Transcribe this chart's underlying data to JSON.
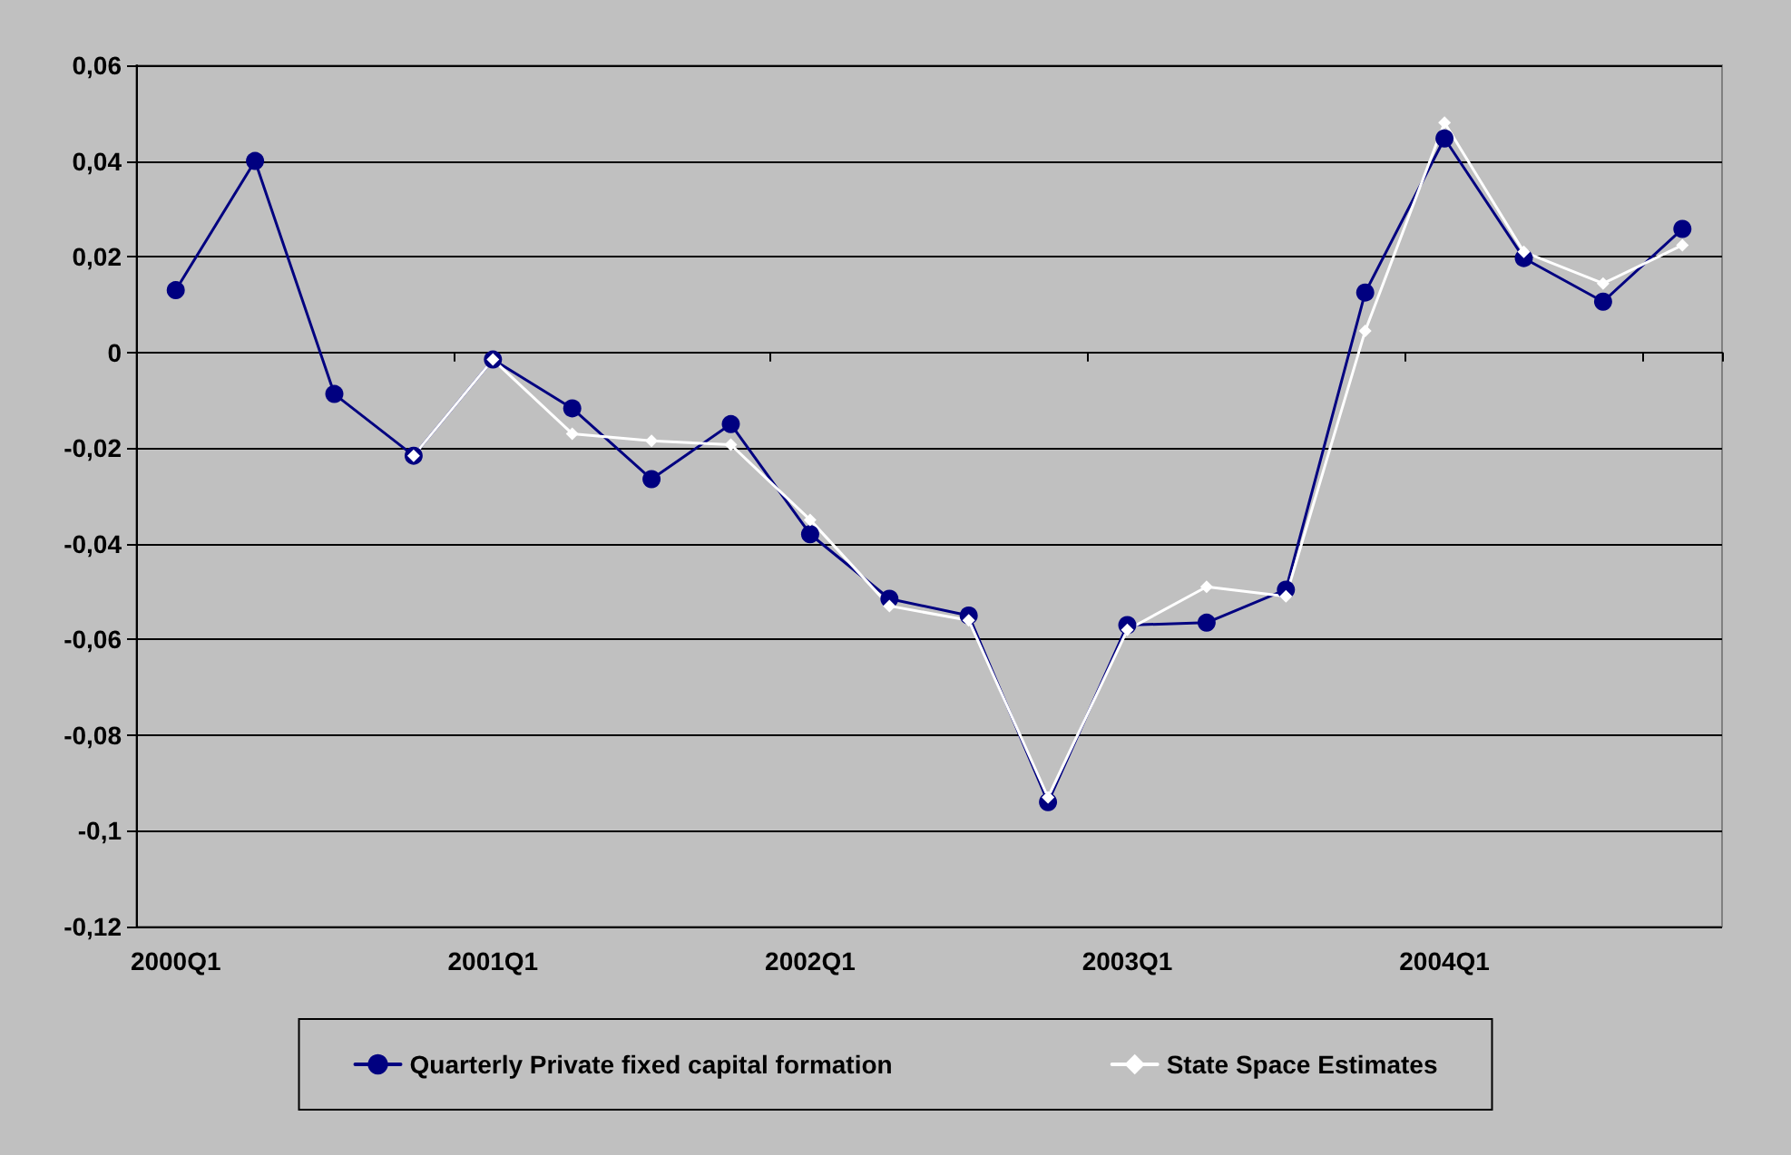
{
  "chart_data": {
    "type": "line",
    "categories": [
      "2000Q1",
      null,
      null,
      null,
      "2001Q1",
      null,
      null,
      null,
      "2002Q1",
      null,
      null,
      null,
      "2003Q1",
      null,
      null,
      null,
      "2004Q1",
      null,
      null,
      null
    ],
    "series": [
      {
        "name": "Quarterly Private fixed capital formation",
        "color": "#000080",
        "marker": "circle",
        "values": [
          0.013,
          0.04,
          -0.0087,
          -0.0216,
          -0.0015,
          -0.0117,
          -0.0265,
          -0.015,
          -0.038,
          -0.0515,
          -0.055,
          -0.094,
          -0.057,
          -0.0565,
          -0.0496,
          0.0125,
          0.0447,
          0.0197,
          0.0106,
          0.0258
        ]
      },
      {
        "name": "State Space Estimates",
        "color": "#ffffff",
        "marker": "diamond",
        "values": [
          null,
          null,
          null,
          -0.0216,
          -0.0015,
          -0.017,
          -0.0185,
          -0.0193,
          -0.035,
          -0.053,
          -0.056,
          -0.093,
          -0.058,
          -0.049,
          -0.051,
          0.0045,
          0.048,
          0.021,
          0.0144,
          0.0224
        ]
      }
    ],
    "ylim": [
      -0.12,
      0.06
    ],
    "yticks": [
      {
        "value": -0.12,
        "label": "-0,12"
      },
      {
        "value": -0.1,
        "label": "-0,1"
      },
      {
        "value": -0.08,
        "label": "-0,08"
      },
      {
        "value": -0.06,
        "label": "-0,06"
      },
      {
        "value": -0.04,
        "label": "-0,04"
      },
      {
        "value": -0.02,
        "label": "-0,02"
      },
      {
        "value": 0,
        "label": "0"
      },
      {
        "value": 0.02,
        "label": "0,02"
      },
      {
        "value": 0.04,
        "label": "0,04"
      },
      {
        "value": 0.06,
        "label": "0,06"
      }
    ],
    "grid": "y",
    "legend": "bottom",
    "line_style": "solid"
  }
}
